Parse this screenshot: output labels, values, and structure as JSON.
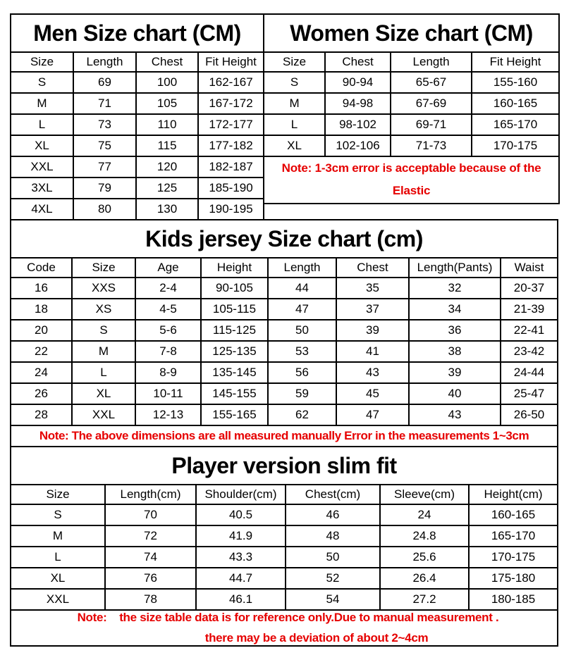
{
  "page": {
    "background": "#ffffff",
    "border_color": "#000000",
    "text_color": "#000000",
    "note_color": "#e60000"
  },
  "men": {
    "title": "Men Size chart (CM)",
    "headers": [
      "Size",
      "Length",
      "Chest",
      "Fit Height"
    ],
    "rows": [
      [
        "S",
        "69",
        "100",
        "162-167"
      ],
      [
        "M",
        "71",
        "105",
        "167-172"
      ],
      [
        "L",
        "73",
        "110",
        "172-177"
      ],
      [
        "XL",
        "75",
        "115",
        "177-182"
      ],
      [
        "XXL",
        "77",
        "120",
        "182-187"
      ],
      [
        "3XL",
        "79",
        "125",
        "185-190"
      ],
      [
        "4XL",
        "80",
        "130",
        "190-195"
      ]
    ]
  },
  "women": {
    "title": "Women Size chart (CM)",
    "headers": [
      "Size",
      "Chest",
      "Length",
      "Fit Height"
    ],
    "rows": [
      [
        "S",
        "90-94",
        "65-67",
        "155-160"
      ],
      [
        "M",
        "94-98",
        "67-69",
        "160-165"
      ],
      [
        "L",
        "98-102",
        "69-71",
        "165-170"
      ],
      [
        "XL",
        "102-106",
        "71-73",
        "170-175"
      ]
    ],
    "note": "Note: 1-3cm error is acceptable because of the Elastic"
  },
  "kids": {
    "title": "Kids jersey Size chart (cm)",
    "headers": [
      "Code",
      "Size",
      "Age",
      "Height",
      "Length",
      "Chest",
      "Length(Pants)",
      "Waist"
    ],
    "rows": [
      [
        "16",
        "XXS",
        "2-4",
        "90-105",
        "44",
        "35",
        "32",
        "20-37"
      ],
      [
        "18",
        "XS",
        "4-5",
        "105-115",
        "47",
        "37",
        "34",
        "21-39"
      ],
      [
        "20",
        "S",
        "5-6",
        "115-125",
        "50",
        "39",
        "36",
        "22-41"
      ],
      [
        "22",
        "M",
        "7-8",
        "125-135",
        "53",
        "41",
        "38",
        "23-42"
      ],
      [
        "24",
        "L",
        "8-9",
        "135-145",
        "56",
        "43",
        "39",
        "24-44"
      ],
      [
        "26",
        "XL",
        "10-11",
        "145-155",
        "59",
        "45",
        "40",
        "25-47"
      ],
      [
        "28",
        "XXL",
        "12-13",
        "155-165",
        "62",
        "47",
        "43",
        "26-50"
      ]
    ],
    "note": "Note: The above dimensions are all measured manually Error in the measurements 1~3cm"
  },
  "player": {
    "title": "Player version slim fit",
    "headers": [
      "Size",
      "Length(cm)",
      "Shoulder(cm)",
      "Chest(cm)",
      "Sleeve(cm)",
      "Height(cm)"
    ],
    "rows": [
      [
        "S",
        "70",
        "40.5",
        "46",
        "24",
        "160-165"
      ],
      [
        "M",
        "72",
        "41.9",
        "48",
        "24.8",
        "165-170"
      ],
      [
        "L",
        "74",
        "43.3",
        "50",
        "25.6",
        "170-175"
      ],
      [
        "XL",
        "76",
        "44.7",
        "52",
        "26.4",
        "175-180"
      ],
      [
        "XXL",
        "78",
        "46.1",
        "54",
        "27.2",
        "180-185"
      ]
    ],
    "note_line1": "Note:    the size table data is for reference only.Due to manual measurement .",
    "note_line2": "there may be a deviation of about 2~4cm"
  }
}
